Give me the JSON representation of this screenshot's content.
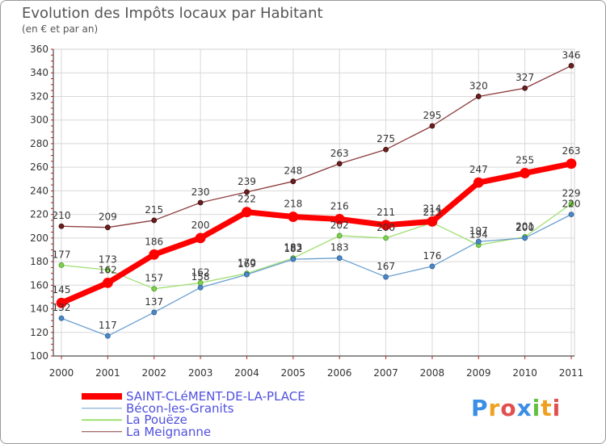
{
  "header": {
    "title": "Evolution des Impôts locaux par Habitant",
    "subtitle": "(en € et par an)"
  },
  "brand": {
    "letters": [
      "P",
      "r",
      "o",
      "x",
      "i",
      "t",
      "i"
    ],
    "colors": [
      "#3a8ee6",
      "#f0a020",
      "#e05050",
      "#3a8ee6",
      "#60c040",
      "#f0a020",
      "#e05050"
    ]
  },
  "chart_data": {
    "type": "line",
    "x": [
      "2000",
      "2001",
      "2002",
      "2003",
      "2004",
      "2005",
      "2006",
      "2007",
      "2008",
      "2009",
      "2010",
      "2011"
    ],
    "ylim": [
      100,
      360
    ],
    "yticks": [
      100,
      120,
      140,
      160,
      180,
      200,
      220,
      240,
      260,
      280,
      300,
      320,
      340,
      360
    ],
    "grid": true,
    "legend_position": "bottom-left",
    "series": [
      {
        "name": "SAINT-CLéMENT-DE-LA-PLACE",
        "color": "#ff0000",
        "values": [
          145,
          162,
          186,
          200,
          222,
          218,
          216,
          211,
          214,
          247,
          255,
          263
        ]
      },
      {
        "name": "Bécon-les-Granits",
        "color": "#6a9fd0",
        "values": [
          132,
          117,
          137,
          158,
          169,
          182,
          183,
          167,
          176,
          197,
          200,
          220
        ]
      },
      {
        "name": "La Pouëze",
        "color": "#9fdf70",
        "values": [
          177,
          173,
          157,
          162,
          170,
          183,
          202,
          200,
          213,
          194,
          201,
          229
        ]
      },
      {
        "name": "La Meignanne",
        "color": "#8b3a3a",
        "values": [
          210,
          209,
          215,
          230,
          239,
          248,
          263,
          275,
          295,
          320,
          327,
          346
        ]
      }
    ],
    "labels": [
      [
        "145",
        "162",
        "186",
        "200",
        "222",
        "218",
        "216",
        "211",
        "214",
        "247",
        "255",
        "263"
      ],
      [
        "132",
        "117",
        "137",
        "158",
        "169",
        "182",
        "183",
        "167",
        "176",
        "197",
        "200",
        "220"
      ],
      [
        "177",
        "173",
        "157",
        "162",
        "170",
        "183",
        "202",
        "200",
        "213",
        "194",
        "201",
        "229"
      ],
      [
        "210",
        "209",
        "215",
        "230",
        "239",
        "248",
        "263",
        "275",
        "295",
        "320",
        "327",
        "346"
      ]
    ]
  }
}
